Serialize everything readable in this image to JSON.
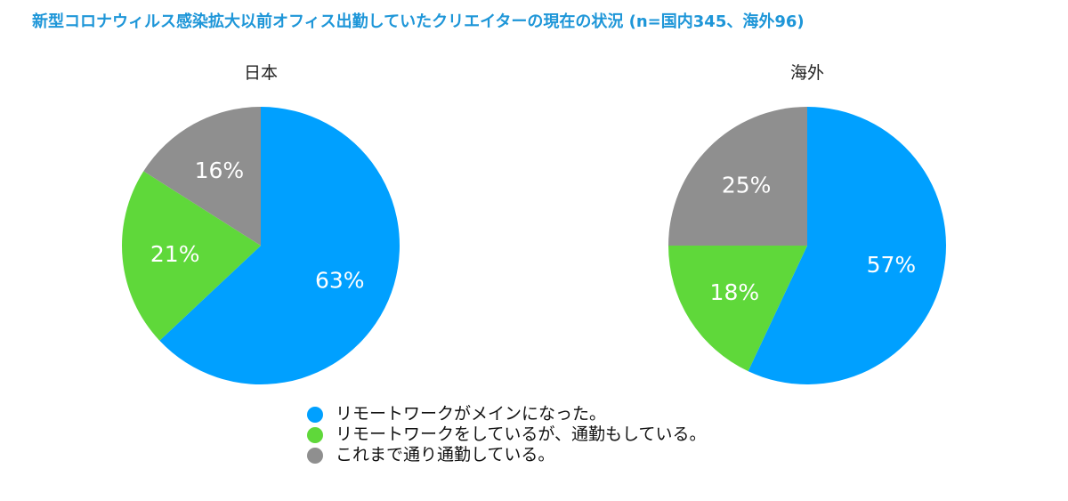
{
  "title": "新型コロナウィルス感染拡大以前オフィス出勤していたクリエイターの現在の状況 (n=国内345、海外96)",
  "colors": {
    "title": "#1e96d8",
    "remote_main": "#00a0ff",
    "mixed": "#5fd83a",
    "commute": "#8f8f8f"
  },
  "legend": [
    {
      "label": "リモートワークがメインになった。",
      "color": "#00a0ff"
    },
    {
      "label": "リモートワークをしているが、通勤もしている。",
      "color": "#5fd83a"
    },
    {
      "label": "これまで通り通勤している。",
      "color": "#8f8f8f"
    }
  ],
  "chart_data": [
    {
      "type": "pie",
      "title": "日本",
      "categories": [
        "リモートワークがメインになった。",
        "リモートワークをしているが、通勤もしている。",
        "これまで通り通勤している。"
      ],
      "values": [
        63,
        21,
        16
      ],
      "labels": [
        "63%",
        "21%",
        "16%"
      ],
      "colors": [
        "#00a0ff",
        "#5fd83a",
        "#8f8f8f"
      ]
    },
    {
      "type": "pie",
      "title": "海外",
      "categories": [
        "リモートワークがメインになった。",
        "リモートワークをしているが、通勤もしている。",
        "これまで通り通勤している。"
      ],
      "values": [
        57,
        18,
        25
      ],
      "labels": [
        "57%",
        "18%",
        "25%"
      ],
      "colors": [
        "#00a0ff",
        "#5fd83a",
        "#8f8f8f"
      ]
    }
  ]
}
